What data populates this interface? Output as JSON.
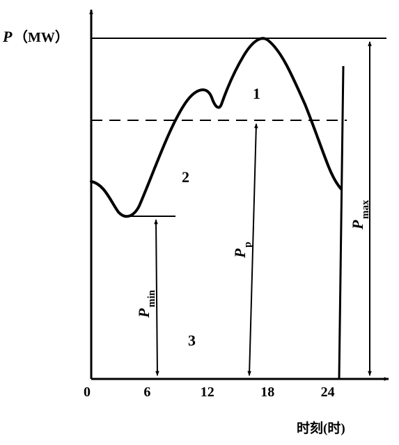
{
  "y_axis": {
    "symbol": "P",
    "unit": "（MW）"
  },
  "x_axis": {
    "ticks": [
      "0",
      "6",
      "12",
      "18",
      "24"
    ],
    "label": "时刻(时)"
  },
  "regions": {
    "peak": "1",
    "middle": "2",
    "base": "3"
  },
  "markers": {
    "p_min": {
      "base": "P",
      "sub": "min"
    },
    "p_p": {
      "base": "P",
      "sub": "p"
    },
    "p_max": {
      "base": "P",
      "sub": "max"
    }
  },
  "colors": {
    "ink": "#000000",
    "paper": "#ffffff"
  }
}
